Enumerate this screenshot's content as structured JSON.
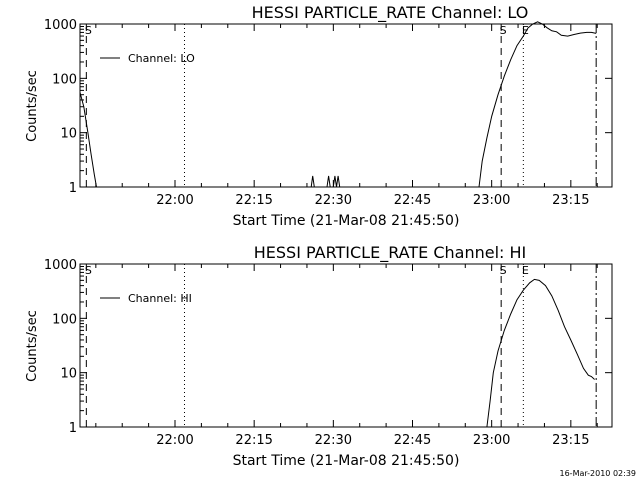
{
  "chart_data": [
    {
      "type": "line",
      "title": "HESSI PARTICLE_RATE Channel: LO",
      "xlabel": "Start Time (21-Mar-08 21:45:50)",
      "ylabel": "Counts/sec",
      "yscale": "log",
      "ylim": [
        1,
        1000
      ],
      "xlim_minutes": [
        21.7,
        23.38
      ],
      "ytick_labels": [
        "1",
        "10",
        "100",
        "1000"
      ],
      "ytick_values": [
        1,
        10,
        100,
        1000
      ],
      "xtick_labels": [
        "22:00",
        "22:15",
        "22:30",
        "22:45",
        "23:00",
        "23:15"
      ],
      "xtick_values": [
        22.0,
        22.25,
        22.5,
        22.75,
        23.0,
        23.25
      ],
      "legend": "Channel: LO",
      "legend_position": "top-left",
      "markers": [
        {
          "x": 21.72,
          "label": "S",
          "style": "dashed"
        },
        {
          "x": 22.03,
          "label": "",
          "style": "dotted"
        },
        {
          "x": 23.03,
          "label": "S",
          "style": "dashed"
        },
        {
          "x": 23.1,
          "label": "E",
          "style": "dotted"
        },
        {
          "x": 23.33,
          "label": "",
          "style": "dashdot"
        }
      ],
      "series": [
        {
          "points": [
            [
              21.7,
              55
            ],
            [
              21.712,
              30
            ],
            [
              21.725,
              10
            ],
            [
              21.735,
              4
            ],
            [
              21.745,
              1.7
            ],
            [
              21.752,
              1
            ],
            [
              22.43,
              1
            ],
            [
              22.435,
              1.6
            ],
            [
              22.44,
              1
            ],
            [
              22.48,
              1
            ],
            [
              22.485,
              1.6
            ],
            [
              22.49,
              1
            ],
            [
              22.5,
              1
            ],
            [
              22.505,
              1.6
            ],
            [
              22.51,
              1
            ],
            [
              22.515,
              1.6
            ],
            [
              22.52,
              1
            ],
            [
              22.96,
              1
            ],
            [
              22.97,
              3
            ],
            [
              22.985,
              8
            ],
            [
              23.0,
              20
            ],
            [
              23.02,
              50
            ],
            [
              23.04,
              110
            ],
            [
              23.06,
              220
            ],
            [
              23.08,
              400
            ],
            [
              23.1,
              600
            ],
            [
              23.115,
              850
            ],
            [
              23.13,
              1000
            ],
            [
              23.145,
              1100
            ],
            [
              23.16,
              1000
            ],
            [
              23.175,
              850
            ],
            [
              23.19,
              750
            ],
            [
              23.205,
              720
            ],
            [
              23.22,
              620
            ],
            [
              23.24,
              600
            ],
            [
              23.26,
              640
            ],
            [
              23.28,
              680
            ],
            [
              23.3,
              700
            ],
            [
              23.315,
              700
            ],
            [
              23.33,
              670
            ]
          ]
        }
      ]
    },
    {
      "type": "line",
      "title": "HESSI PARTICLE_RATE Channel: HI",
      "xlabel": "Start Time (21-Mar-08 21:45:50)",
      "ylabel": "Counts/sec",
      "yscale": "log",
      "ylim": [
        1,
        1000
      ],
      "xlim_minutes": [
        21.7,
        23.38
      ],
      "ytick_labels": [
        "1",
        "10",
        "100",
        "1000"
      ],
      "ytick_values": [
        1,
        10,
        100,
        1000
      ],
      "xtick_labels": [
        "22:00",
        "22:15",
        "22:30",
        "22:45",
        "23:00",
        "23:15"
      ],
      "xtick_values": [
        22.0,
        22.25,
        22.5,
        22.75,
        23.0,
        23.25
      ],
      "legend": "Channel: HI",
      "legend_position": "top-left",
      "markers": [
        {
          "x": 21.72,
          "label": "S",
          "style": "dashed"
        },
        {
          "x": 22.03,
          "label": "",
          "style": "dotted"
        },
        {
          "x": 23.03,
          "label": "S",
          "style": "dashed"
        },
        {
          "x": 23.1,
          "label": "E",
          "style": "dotted"
        },
        {
          "x": 23.33,
          "label": "",
          "style": "dashdot"
        }
      ],
      "series": [
        {
          "points": [
            [
              22.985,
              1
            ],
            [
              22.995,
              3
            ],
            [
              23.005,
              10
            ],
            [
              23.02,
              25
            ],
            [
              23.04,
              60
            ],
            [
              23.06,
              120
            ],
            [
              23.08,
              220
            ],
            [
              23.1,
              330
            ],
            [
              23.12,
              450
            ],
            [
              23.135,
              520
            ],
            [
              23.15,
              500
            ],
            [
              23.17,
              400
            ],
            [
              23.19,
              260
            ],
            [
              23.21,
              140
            ],
            [
              23.23,
              70
            ],
            [
              23.25,
              40
            ],
            [
              23.27,
              22
            ],
            [
              23.29,
              12
            ],
            [
              23.305,
              9
            ],
            [
              23.315,
              8.5
            ],
            [
              23.325,
              7.5
            ]
          ]
        }
      ]
    }
  ],
  "footer": {
    "timestamp": "16-Mar-2010 02:39"
  }
}
